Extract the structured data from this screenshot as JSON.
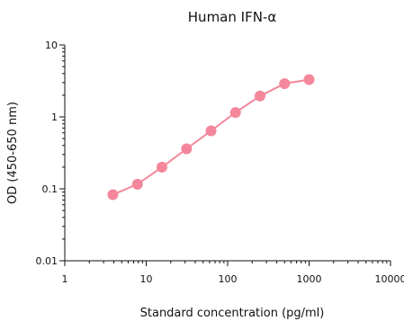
{
  "chart_data": {
    "type": "line",
    "title": "Human IFN-α",
    "xlabel": "Standard concentration (pg/ml)",
    "ylabel": "OD (450-650 nm)",
    "x_scale": "log",
    "y_scale": "log",
    "xlim": [
      1,
      10000
    ],
    "ylim": [
      0.01,
      10
    ],
    "x_ticks": [
      {
        "value": 1,
        "label": "1"
      },
      {
        "value": 10,
        "label": "10"
      },
      {
        "value": 100,
        "label": "100"
      },
      {
        "value": 1000,
        "label": "1000"
      },
      {
        "value": 10000,
        "label": "10000"
      }
    ],
    "y_ticks": [
      {
        "value": 0.01,
        "label": "0.01"
      },
      {
        "value": 0.1,
        "label": "0.1"
      },
      {
        "value": 1,
        "label": "1"
      },
      {
        "value": 10,
        "label": "10"
      }
    ],
    "grid": false,
    "series": [
      {
        "color": "#f4879b",
        "x": [
          3.9,
          7.8,
          15.6,
          31.3,
          62.5,
          125,
          250,
          500,
          1000
        ],
        "y": [
          0.083,
          0.116,
          0.2,
          0.36,
          0.64,
          1.15,
          1.95,
          2.9,
          3.3
        ]
      }
    ]
  }
}
